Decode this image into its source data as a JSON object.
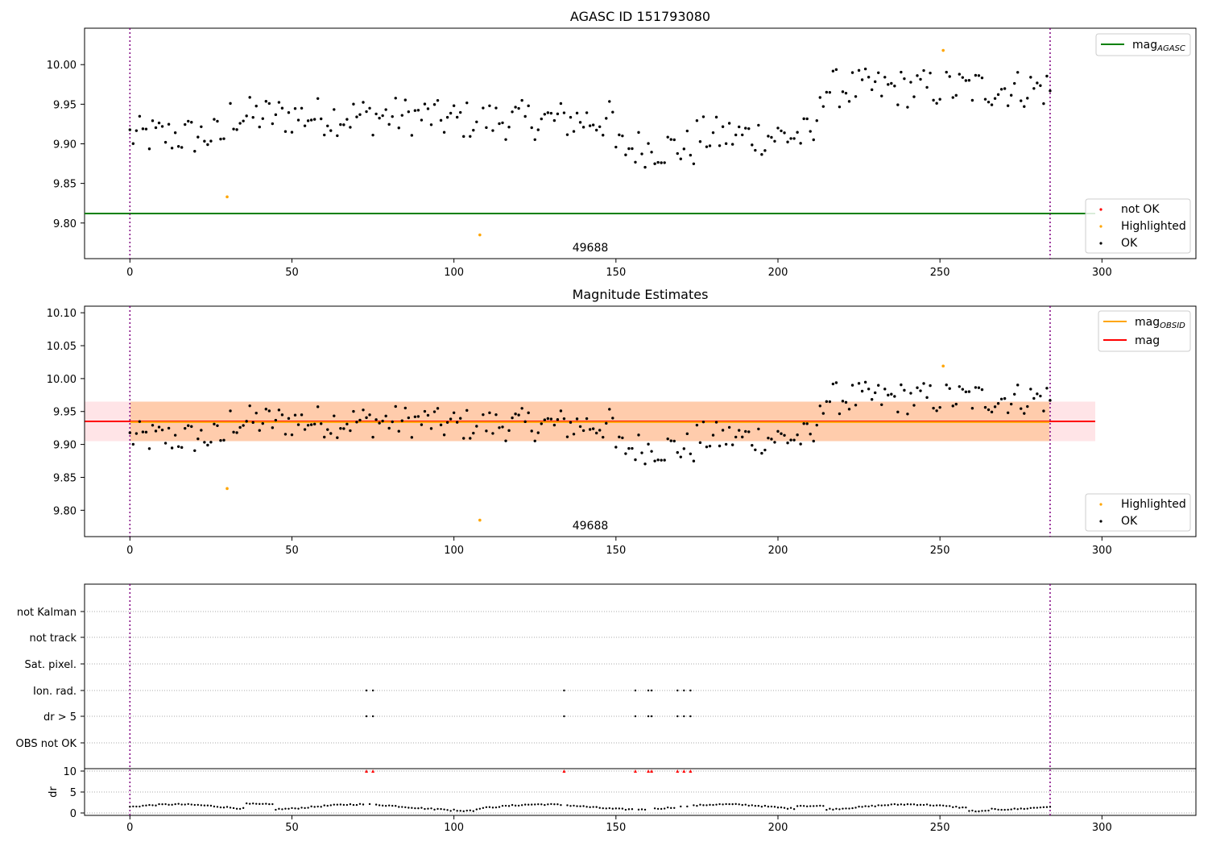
{
  "chart_data": [
    {
      "type": "scatter",
      "title": "AGASC ID 151793080",
      "xlim": [
        -14,
        329
      ],
      "ylim": [
        9.755,
        10.046
      ],
      "xticks": [
        "0",
        "50",
        "100",
        "150",
        "200",
        "250",
        "300"
      ],
      "yticks": [
        "9.80",
        "9.85",
        "9.90",
        "9.95",
        "10.00"
      ],
      "obsid_label": "49688",
      "vlines": [
        0,
        284
      ],
      "mag_agasc": 9.812,
      "legend_top": [
        {
          "label": "mag",
          "sub": "AGASC",
          "color": "#008000",
          "kind": "line"
        }
      ],
      "legend_bottom": [
        {
          "label": "not OK",
          "color": "#ff0000",
          "kind": "dot"
        },
        {
          "label": "Highlighted",
          "color": "#ffa500",
          "kind": "dot"
        },
        {
          "label": "OK",
          "color": "#000000",
          "kind": "dot"
        }
      ],
      "highlighted": [
        [
          30,
          9.833
        ],
        [
          108,
          9.785
        ],
        [
          251,
          10.018
        ]
      ]
    },
    {
      "type": "scatter",
      "title": "Magnitude Estimates",
      "xlim": [
        -14,
        329
      ],
      "ylim": [
        9.76,
        10.11
      ],
      "xticks": [
        "0",
        "50",
        "100",
        "150",
        "200",
        "250",
        "300"
      ],
      "yticks": [
        "9.80",
        "9.85",
        "9.90",
        "9.95",
        "10.00",
        "10.05",
        "10.10"
      ],
      "obsid_label": "49688",
      "vlines": [
        0,
        284
      ],
      "mag": 9.935,
      "mag_band": [
        9.905,
        9.965
      ],
      "mag_obsid": 9.934,
      "obsid_band": [
        9.905,
        9.965
      ],
      "legend_top": [
        {
          "label": "mag",
          "sub": "OBSID",
          "color": "#ffa500",
          "kind": "line"
        },
        {
          "label": "mag",
          "sub": "",
          "color": "#ff0000",
          "kind": "line"
        }
      ],
      "legend_bottom": [
        {
          "label": "Highlighted",
          "color": "#ffa500",
          "kind": "dot"
        },
        {
          "label": "OK",
          "color": "#000000",
          "kind": "dot"
        }
      ],
      "highlighted": [
        [
          30,
          9.833
        ],
        [
          108,
          9.785
        ],
        [
          251,
          10.019
        ]
      ]
    },
    {
      "type": "scatter",
      "title": "",
      "xlim": [
        -14,
        329
      ],
      "xticks": [
        "0",
        "50",
        "100",
        "150",
        "200",
        "250",
        "300"
      ],
      "flag_labels": [
        "not Kalman",
        "not track",
        "Sat. pixel.",
        "Ion. rad.",
        "dr > 5",
        "OBS not OK"
      ],
      "flagged_x": [
        73,
        75,
        134,
        156,
        160,
        161,
        169,
        171,
        173
      ],
      "dr_ylabel": "dr",
      "dr_yticks": [
        "0",
        "5",
        "10"
      ],
      "dr_ylim": [
        0,
        10
      ],
      "vlines": [
        0,
        284
      ]
    }
  ]
}
